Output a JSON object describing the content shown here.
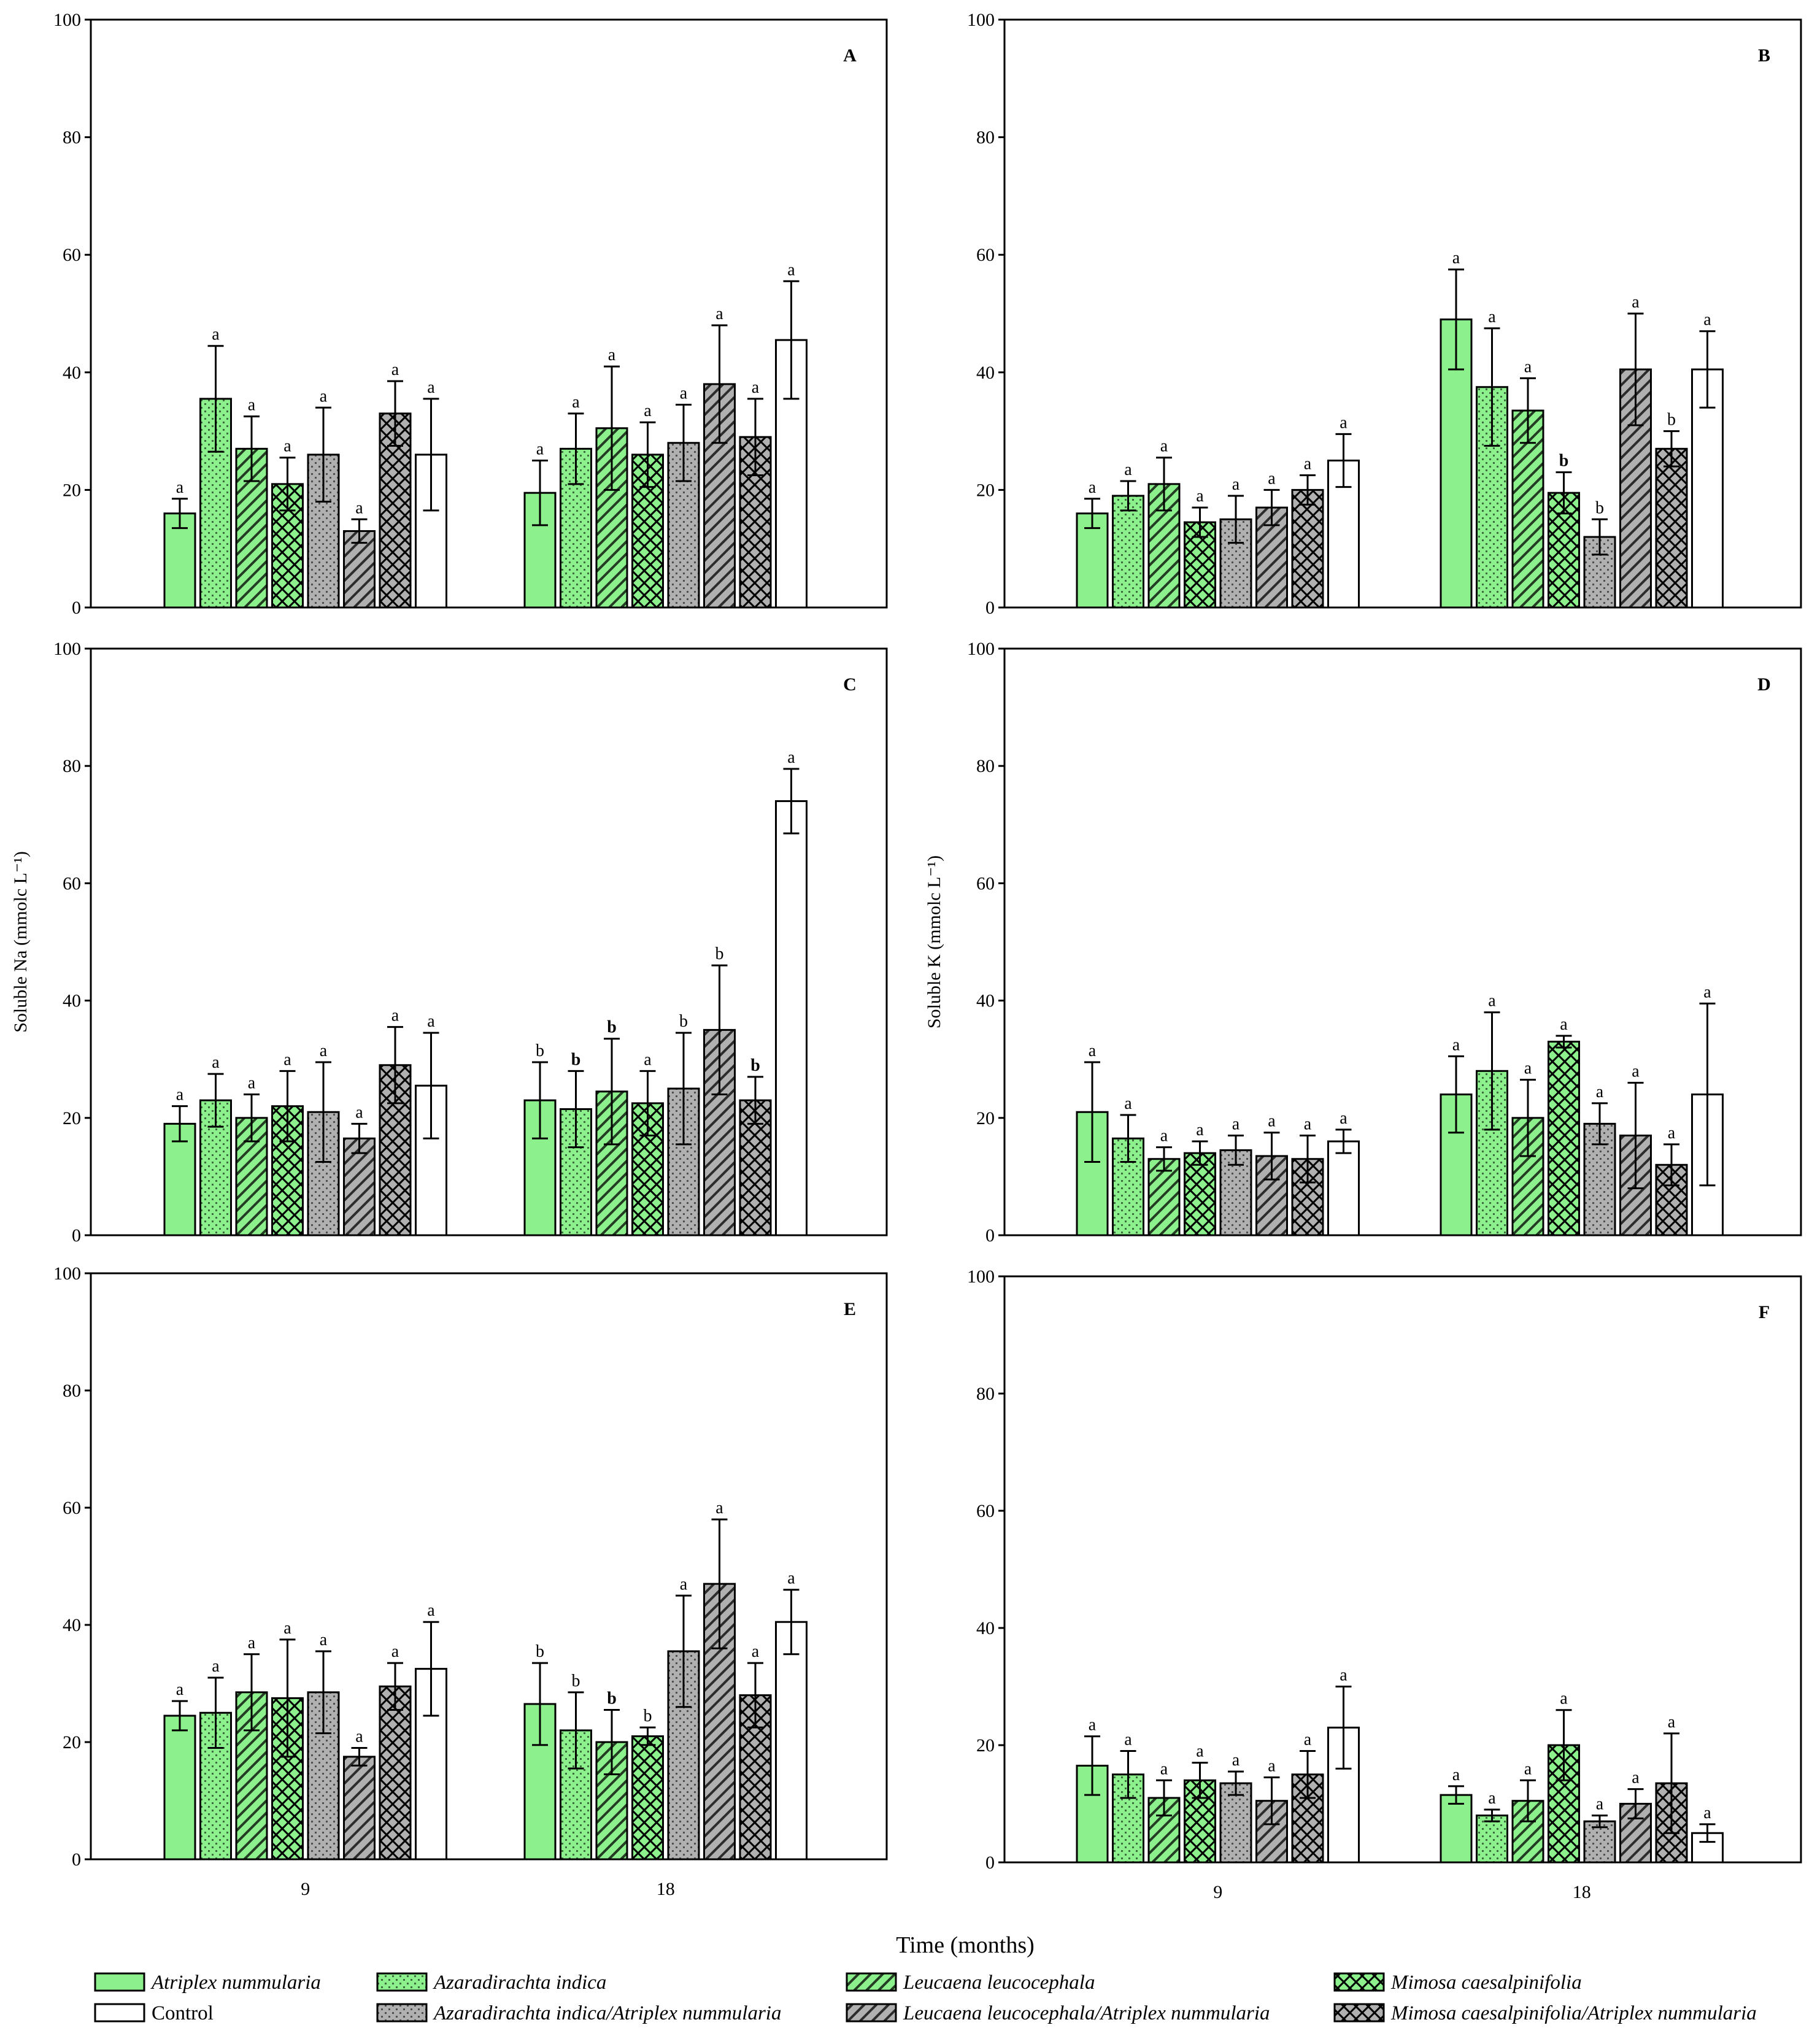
{
  "colors": {
    "green": "#8cf08c",
    "gray": "#b0b0b0",
    "white": "#ffffff",
    "ink": "#000000"
  },
  "x_axis_title": "Time (months)",
  "y_axis_titles": {
    "C": "Soluble Na (mmolc L⁻¹)",
    "D": "Soluble K (mmolc L⁻¹)"
  },
  "legend": [
    {
      "label": "Atriplex nummularia",
      "italic": true,
      "fill": "green",
      "pattern": "solid"
    },
    {
      "label": "Azaradirachta indica",
      "italic": true,
      "fill": "green",
      "pattern": "dots"
    },
    {
      "label": "Leucaena leucocephala",
      "italic": true,
      "fill": "green",
      "pattern": "hatch"
    },
    {
      "label": "Mimosa caesalpinifolia",
      "italic": true,
      "fill": "green",
      "pattern": "cross"
    },
    {
      "label": "Control",
      "italic": false,
      "fill": "white",
      "pattern": "solid"
    },
    {
      "label": "Azaradirachta indica/Atriplex nummularia",
      "italic": true,
      "fill": "gray",
      "pattern": "dots"
    },
    {
      "label": "Leucaena leucocephala/Atriplex nummularia",
      "italic": true,
      "fill": "gray",
      "pattern": "hatch"
    },
    {
      "label": "Mimosa caesalpinifolia/Atriplex nummularia",
      "italic": true,
      "fill": "gray",
      "pattern": "cross"
    }
  ],
  "chart_data": [
    {
      "type": "bar",
      "panel": "A",
      "categories": [
        "9",
        "18"
      ],
      "ylim": [
        0,
        100
      ],
      "yticks": [
        "0",
        "20",
        "40",
        "60",
        "80",
        "100"
      ],
      "ylabel": "",
      "xlabel": "",
      "series_order": [
        "Atriplex nummularia",
        "Azaradirachta indica",
        "Leucaena leucocephala",
        "Mimosa caesalpinifolia",
        "Azaradirachta indica/Atriplex nummularia",
        "Leucaena leucocephala/Atriplex nummularia",
        "Mimosa caesalpinifolia/Atriplex nummularia",
        "Control"
      ],
      "groups": [
        {
          "values": [
            16,
            35.5,
            27,
            21,
            26,
            13,
            33,
            26
          ],
          "errors": [
            2.5,
            9,
            5.5,
            4.5,
            8,
            2,
            5.5,
            9.5
          ],
          "letters": [
            "a",
            "a",
            "a",
            "a",
            "a",
            "a",
            "a",
            "a"
          ],
          "bold": [
            false,
            false,
            false,
            false,
            false,
            false,
            false,
            false
          ]
        },
        {
          "values": [
            19.5,
            27,
            30.5,
            26,
            28,
            38,
            29,
            45.5
          ],
          "errors": [
            5.5,
            6,
            10.5,
            5.5,
            6.5,
            10,
            6.5,
            10
          ],
          "letters": [
            "a",
            "a",
            "a",
            "a",
            "a",
            "a",
            "a",
            "a"
          ],
          "bold": [
            false,
            false,
            false,
            false,
            false,
            false,
            false,
            false
          ]
        }
      ]
    },
    {
      "type": "bar",
      "panel": "B",
      "categories": [
        "9",
        "18"
      ],
      "ylim": [
        0,
        100
      ],
      "yticks": [
        "0",
        "20",
        "40",
        "60",
        "80",
        "100"
      ],
      "ylabel": "",
      "xlabel": "",
      "groups": [
        {
          "values": [
            16,
            19,
            21,
            14.5,
            15,
            17,
            20,
            25
          ],
          "errors": [
            2.5,
            2.5,
            4.5,
            2.5,
            4,
            3,
            2.5,
            4.5
          ],
          "letters": [
            "a",
            "a",
            "a",
            "a",
            "a",
            "a",
            "a",
            "a"
          ],
          "bold": [
            false,
            false,
            false,
            false,
            false,
            false,
            false,
            false
          ]
        },
        {
          "values": [
            49,
            37.5,
            33.5,
            19.5,
            12,
            40.5,
            27,
            40.5
          ],
          "errors": [
            8.5,
            10,
            5.5,
            3.5,
            3,
            9.5,
            3,
            6.5
          ],
          "letters": [
            "a",
            "a",
            "a",
            "b",
            "b",
            "a",
            "b",
            "a"
          ],
          "bold": [
            false,
            false,
            false,
            true,
            false,
            false,
            false,
            false
          ]
        }
      ]
    },
    {
      "type": "bar",
      "panel": "C",
      "categories": [
        "9",
        "18"
      ],
      "ylim": [
        0,
        100
      ],
      "yticks": [
        "0",
        "20",
        "40",
        "60",
        "80",
        "100"
      ],
      "ylabel": "Soluble Na (mmolc L⁻¹)",
      "xlabel": "",
      "groups": [
        {
          "values": [
            19,
            23,
            20,
            22,
            21,
            16.5,
            29,
            25.5
          ],
          "errors": [
            3,
            4.5,
            4,
            6,
            8.5,
            2.5,
            6.5,
            9
          ],
          "letters": [
            "a",
            "a",
            "a",
            "a",
            "a",
            "a",
            "a",
            "a"
          ],
          "bold": [
            false,
            false,
            false,
            false,
            false,
            false,
            false,
            false
          ]
        },
        {
          "values": [
            23,
            21.5,
            24.5,
            22.5,
            25,
            35,
            23,
            74
          ],
          "errors": [
            6.5,
            6.5,
            9,
            5.5,
            9.5,
            11,
            4,
            5.5
          ],
          "letters": [
            "b",
            "b",
            "b",
            "a",
            "b",
            "b",
            "b",
            "a"
          ],
          "bold": [
            false,
            true,
            true,
            false,
            false,
            false,
            true,
            false
          ]
        }
      ]
    },
    {
      "type": "bar",
      "panel": "D",
      "categories": [
        "9",
        "18"
      ],
      "ylim": [
        0,
        100
      ],
      "yticks": [
        "0",
        "20",
        "40",
        "60",
        "80",
        "100"
      ],
      "ylabel": "Soluble K (mmolc L⁻¹)",
      "xlabel": "",
      "groups": [
        {
          "values": [
            21,
            16.5,
            13,
            14,
            14.5,
            13.5,
            13,
            16
          ],
          "errors": [
            8.5,
            4,
            2,
            2,
            2.5,
            4,
            4,
            2
          ],
          "letters": [
            "a",
            "a",
            "a",
            "a",
            "a",
            "a",
            "a",
            "a"
          ],
          "bold": [
            false,
            false,
            false,
            false,
            false,
            false,
            false,
            false
          ]
        },
        {
          "values": [
            24,
            28,
            20,
            33,
            19,
            17,
            12,
            24
          ],
          "errors": [
            6.5,
            10,
            6.5,
            1,
            3.5,
            9,
            3.5,
            15.5
          ],
          "letters": [
            "a",
            "a",
            "a",
            "a",
            "a",
            "a",
            "a",
            "a"
          ],
          "bold": [
            false,
            false,
            false,
            false,
            false,
            false,
            false,
            false
          ]
        }
      ]
    },
    {
      "type": "bar",
      "panel": "E",
      "categories": [
        "9",
        "18"
      ],
      "ylim": [
        0,
        100
      ],
      "yticks": [
        "0",
        "20",
        "40",
        "60",
        "80",
        "100"
      ],
      "ylabel": "",
      "xlabel": "",
      "groups": [
        {
          "values": [
            24.5,
            25,
            28.5,
            27.5,
            28.5,
            17.5,
            29.5,
            32.5
          ],
          "errors": [
            2.5,
            6,
            6.5,
            10,
            7,
            1.5,
            4,
            8
          ],
          "letters": [
            "a",
            "a",
            "a",
            "a",
            "a",
            "a",
            "a",
            "a"
          ],
          "bold": [
            false,
            false,
            false,
            false,
            false,
            false,
            false,
            false
          ]
        },
        {
          "values": [
            26.5,
            22,
            20,
            21,
            35.5,
            47,
            28,
            40.5
          ],
          "errors": [
            7,
            6.5,
            5.5,
            1.5,
            9.5,
            11,
            5.5,
            5.5
          ],
          "letters": [
            "b",
            "b",
            "b",
            "b",
            "a",
            "a",
            "a",
            "a"
          ],
          "bold": [
            false,
            false,
            true,
            false,
            false,
            false,
            false,
            false
          ]
        }
      ]
    },
    {
      "type": "bar",
      "panel": "F",
      "categories": [
        "9",
        "18"
      ],
      "ylim": [
        0,
        100
      ],
      "yticks": [
        "0",
        "20",
        "40",
        "60",
        "80",
        "100"
      ],
      "ylabel": "",
      "xlabel": "",
      "groups": [
        {
          "values": [
            16.5,
            15,
            11,
            14,
            13.5,
            10.5,
            15,
            23
          ],
          "errors": [
            5,
            4,
            3,
            3,
            2,
            4,
            4,
            7
          ],
          "letters": [
            "a",
            "a",
            "a",
            "a",
            "a",
            "a",
            "a",
            "a"
          ],
          "bold": [
            false,
            false,
            false,
            false,
            false,
            false,
            false,
            false
          ]
        },
        {
          "values": [
            11.5,
            8,
            10.5,
            20,
            7,
            10,
            13.5,
            5
          ],
          "errors": [
            1.5,
            1,
            3.5,
            6,
            1,
            2.5,
            8.5,
            1.5
          ],
          "letters": [
            "a",
            "a",
            "a",
            "a",
            "a",
            "a",
            "a",
            "a"
          ],
          "bold": [
            false,
            false,
            false,
            false,
            false,
            false,
            false,
            false
          ]
        }
      ]
    }
  ]
}
